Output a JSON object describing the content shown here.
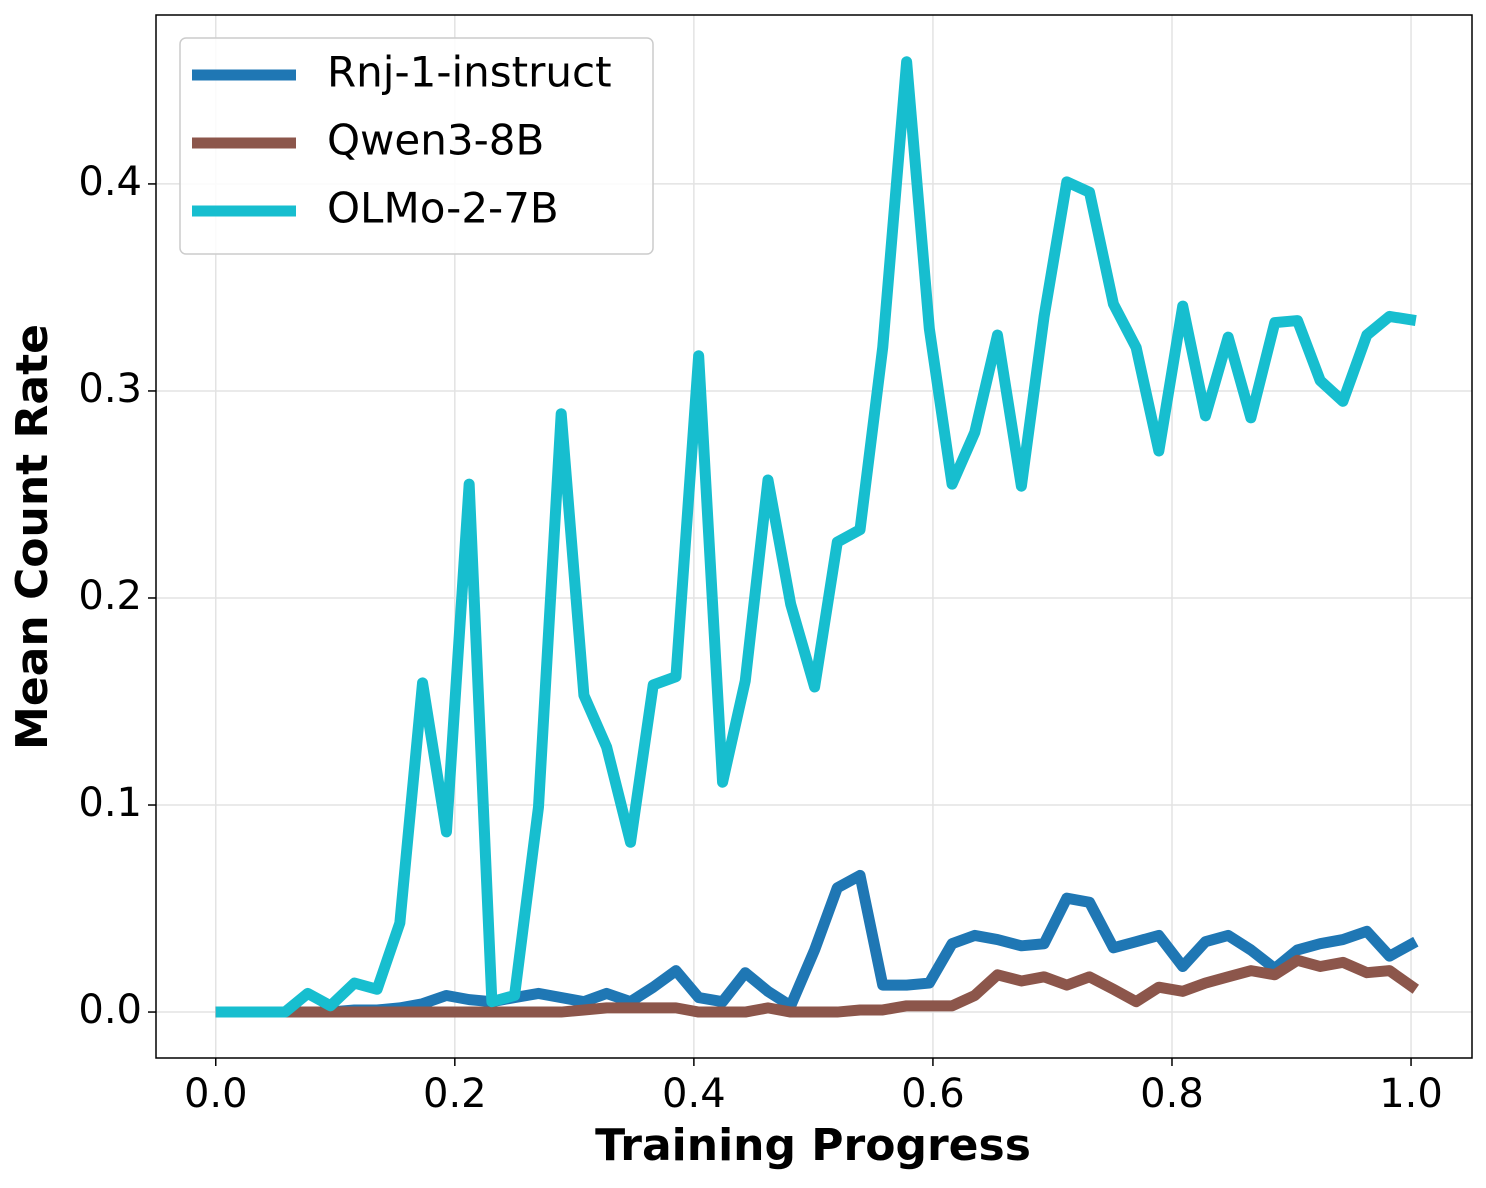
{
  "chart_data": {
    "type": "line",
    "xlabel": "Training Progress",
    "ylabel": "Mean Count Rate",
    "x": [
      0,
      0.019,
      0.039,
      0.058,
      0.077,
      0.096,
      0.116,
      0.135,
      0.154,
      0.173,
      0.193,
      0.212,
      0.231,
      0.25,
      0.27,
      0.289,
      0.308,
      0.327,
      0.347,
      0.366,
      0.385,
      0.404,
      0.424,
      0.443,
      0.462,
      0.481,
      0.501,
      0.52,
      0.539,
      0.558,
      0.578,
      0.597,
      0.616,
      0.635,
      0.654,
      0.674,
      0.693,
      0.712,
      0.731,
      0.751,
      0.77,
      0.789,
      0.809,
      0.828,
      0.847,
      0.866,
      0.886,
      0.905,
      0.924,
      0.943,
      0.963,
      0.982,
      1.004
    ],
    "series": [
      {
        "name": "Rnj-1-instruct",
        "color": "#1f77b4",
        "values": [
          0,
          0,
          0,
          0,
          0,
          0,
          0.001,
          0.001,
          0.002,
          0.004,
          0.008,
          0.006,
          0.005,
          0.007,
          0.009,
          0.007,
          0.005,
          0.009,
          0.005,
          0.012,
          0.02,
          0.007,
          0.005,
          0.019,
          0.01,
          0.003,
          0.03,
          0.06,
          0.066,
          0.013,
          0.013,
          0.014,
          0.033,
          0.037,
          0.035,
          0.032,
          0.033,
          0.055,
          0.053,
          0.031,
          0.034,
          0.037,
          0.022,
          0.034,
          0.037,
          0.03,
          0.021,
          0.03,
          0.033,
          0.035,
          0.039,
          0.027,
          0.034
        ]
      },
      {
        "name": "Qwen3-8B",
        "color": "#8c564b",
        "values": [
          0,
          0,
          0,
          0,
          0,
          0,
          0,
          0,
          0,
          0,
          0,
          0,
          0,
          0,
          0,
          0,
          0.001,
          0.002,
          0.002,
          0.002,
          0.002,
          0,
          0,
          0,
          0.002,
          0,
          0,
          0,
          0.001,
          0.001,
          0.003,
          0.003,
          0.003,
          0.008,
          0.018,
          0.015,
          0.017,
          0.013,
          0.017,
          0.011,
          0.005,
          0.012,
          0.01,
          0.014,
          0.017,
          0.02,
          0.018,
          0.025,
          0.022,
          0.024,
          0.019,
          0.02,
          0.011
        ]
      },
      {
        "name": "OLMo-2-7B",
        "color": "#17becf",
        "values": [
          0,
          0,
          0,
          0,
          0.009,
          0.003,
          0.014,
          0.011,
          0.043,
          0.159,
          0.087,
          0.255,
          0.005,
          0.008,
          0.099,
          0.289,
          0.153,
          0.128,
          0.082,
          0.158,
          0.162,
          0.317,
          0.111,
          0.16,
          0.257,
          0.197,
          0.157,
          0.227,
          0.233,
          0.321,
          0.459,
          0.33,
          0.255,
          0.28,
          0.327,
          0.254,
          0.336,
          0.401,
          0.396,
          0.342,
          0.321,
          0.271,
          0.341,
          0.288,
          0.326,
          0.287,
          0.333,
          0.334,
          0.305,
          0.295,
          0.327,
          0.336,
          0.334
        ]
      }
    ],
    "xlim": [
      -0.05,
      1.051
    ],
    "ylim": [
      -0.0222,
      0.4816
    ],
    "xticks": [
      {
        "value": 0,
        "label": "0.0"
      },
      0.2,
      0.4,
      0.6,
      0.8,
      {
        "value": 1,
        "label": "1.0"
      }
    ],
    "yticks": [
      {
        "value": 0,
        "label": "0.0"
      },
      0.1,
      0.2,
      0.3,
      0.4
    ],
    "grid": true,
    "legend": "upper left"
  }
}
